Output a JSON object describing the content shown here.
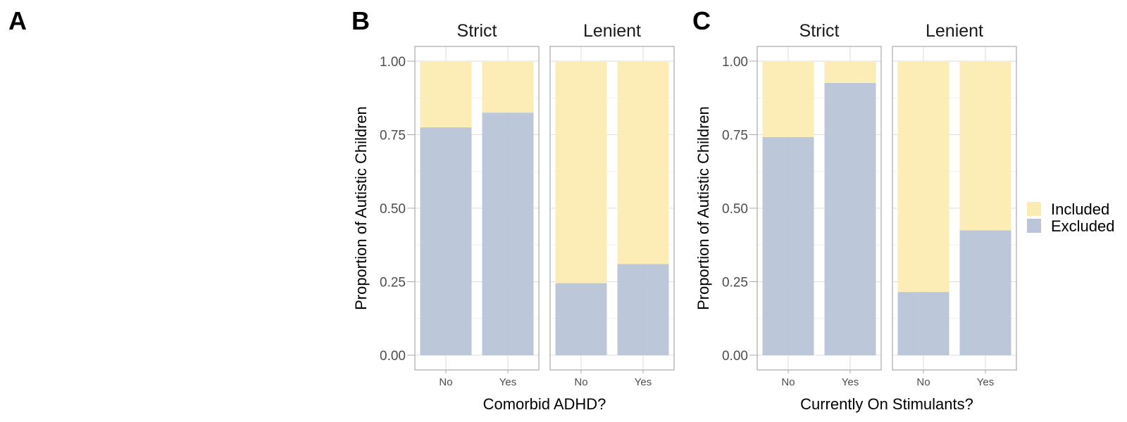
{
  "panel_labels": {
    "a": "A",
    "b": "B",
    "c": "C"
  },
  "colors": {
    "Included": "#fcecb4",
    "Excluded": "#bac5d9"
  },
  "legend": {
    "items": [
      "Included",
      "Excluded"
    ]
  },
  "chart_data": [
    {
      "type": "bar",
      "stacked": true,
      "panel": "B",
      "facets": [
        "Strict",
        "Lenient"
      ],
      "categories": [
        "No",
        "Yes"
      ],
      "xlabel": "Comorbid ADHD?",
      "ylabel": "Proportion of Autistic Children",
      "ylim": [
        0,
        1
      ],
      "yticks": [
        "0.00",
        "0.25",
        "0.50",
        "0.75",
        "1.00"
      ],
      "series": [
        {
          "name": "Excluded",
          "facet_values": {
            "Strict": [
              0.775,
              0.825
            ],
            "Lenient": [
              0.245,
              0.31
            ]
          }
        },
        {
          "name": "Included",
          "facet_values": {
            "Strict": [
              0.225,
              0.175
            ],
            "Lenient": [
              0.755,
              0.69
            ]
          }
        }
      ]
    },
    {
      "type": "bar",
      "stacked": true,
      "panel": "C",
      "facets": [
        "Strict",
        "Lenient"
      ],
      "categories": [
        "No",
        "Yes"
      ],
      "xlabel": "Currently On Stimulants?",
      "ylabel": "Proportion of Autistic Children",
      "ylim": [
        0,
        1
      ],
      "yticks": [
        "0.00",
        "0.25",
        "0.50",
        "0.75",
        "1.00"
      ],
      "series": [
        {
          "name": "Excluded",
          "facet_values": {
            "Strict": [
              0.742,
              0.926
            ],
            "Lenient": [
              0.215,
              0.425
            ]
          }
        },
        {
          "name": "Included",
          "facet_values": {
            "Strict": [
              0.258,
              0.074
            ],
            "Lenient": [
              0.785,
              0.575
            ]
          }
        }
      ]
    }
  ]
}
